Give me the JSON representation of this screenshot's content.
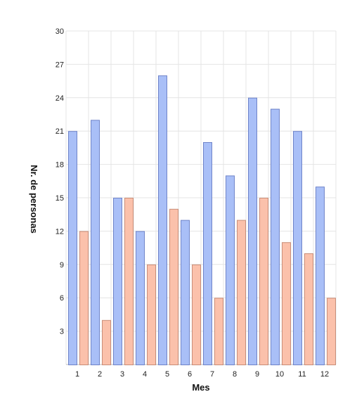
{
  "chart_data": {
    "type": "bar",
    "xlabel": "Mes",
    "ylabel": "Nr. de personas",
    "categories": [
      "1",
      "2",
      "3",
      "4",
      "5",
      "6",
      "7",
      "8",
      "9",
      "10",
      "11",
      "12"
    ],
    "ylim": [
      0,
      30
    ],
    "yticks": [
      3,
      6,
      9,
      12,
      15,
      18,
      21,
      24,
      27,
      30
    ],
    "grid": true,
    "legend": "none",
    "series": [
      {
        "values": [
          21,
          22,
          15,
          12,
          26,
          13,
          20,
          17,
          24,
          23,
          21,
          16
        ],
        "color": "#a9bff7",
        "stroke": "#6f84c9"
      },
      {
        "values": [
          12,
          4,
          15,
          9,
          14,
          9,
          6,
          13,
          15,
          11,
          10,
          6
        ],
        "color": "#fbc1ab",
        "stroke": "#c98d78"
      }
    ]
  }
}
